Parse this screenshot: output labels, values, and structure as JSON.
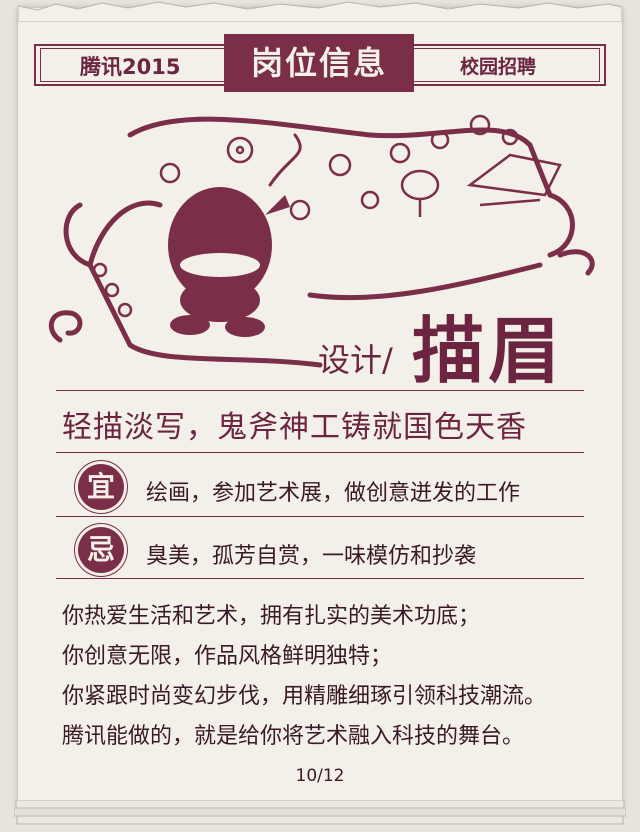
{
  "header": {
    "left": "腾讯2015",
    "center": "岗位信息",
    "right": "校园招聘"
  },
  "role": {
    "prefix": "设计/",
    "title": "描眉"
  },
  "tagline": "轻描淡写，鬼斧神工铸就国色天香",
  "suitable": {
    "badge": "宜",
    "text": "绘画，参加艺术展，做创意迸发的工作"
  },
  "avoid": {
    "badge": "忌",
    "text": "臭美，孤芳自赏，一味模仿和抄袭"
  },
  "description": [
    "你热爱生活和艺术，拥有扎实的美术功底；",
    "你创意无限，作品风格鲜明独特；",
    "你紧跟时尚变幻步伐，用精雕细琢引领科技潮流。",
    "腾讯能做的，就是给你将艺术融入科技的舞台。"
  ],
  "page_number": "10/12",
  "colors": {
    "accent": "#7a2e48",
    "paper": "#f3f0ea",
    "text": "#3a1a26"
  }
}
